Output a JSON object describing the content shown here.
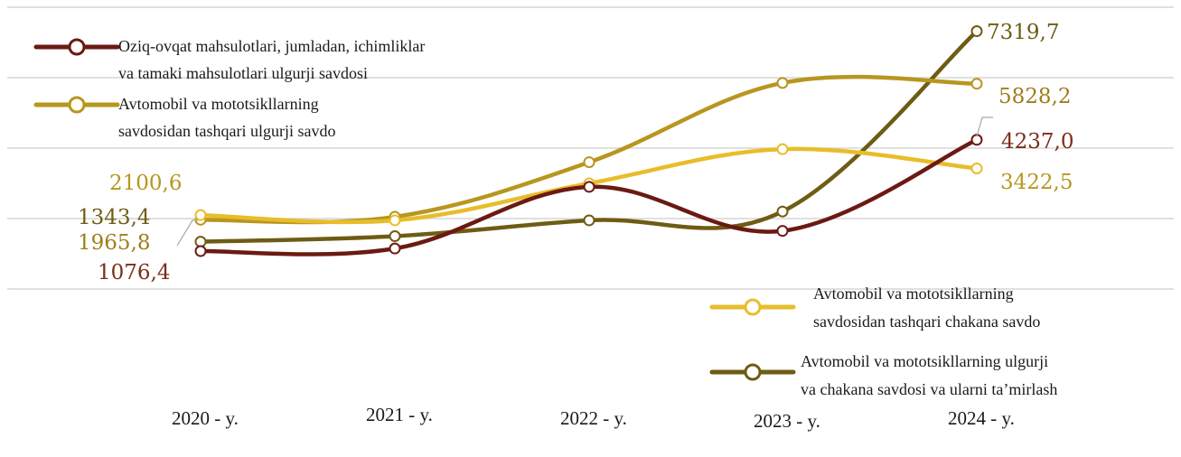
{
  "chart_data": {
    "type": "line",
    "categories": [
      "2020 - y.",
      "2021 - y.",
      "2022 - y.",
      "2023 - y.",
      "2024 - y."
    ],
    "ylim": [
      -2000,
      8000
    ],
    "grid": true,
    "smooth": true,
    "series": [
      {
        "name": "Oziq-ovqat mahsulotlari, jumladan, ichimliklar va tamaki mahsulotlari ulgurji savdosi",
        "legend_lines": [
          "Oziq-ovqat mahsulotlari, jumladan, ichimliklar",
          "va tamaki mahsulotlari ulgurji savdosi"
        ],
        "color": "#6b1a12",
        "label_color": "#7a2e1a",
        "values": [
          1076.4,
          1150,
          2900,
          1650,
          4237.0
        ],
        "labels": [
          "1076,4",
          "",
          "",
          "",
          "4237,0"
        ]
      },
      {
        "name": "Avtomobil va mototsikllarning savdosidan tashqari ulgurji savdo",
        "legend_lines": [
          "Avtomobil va mototsikllarning",
          "savdosidan tashqari ulgurji savdo"
        ],
        "color": "#b8961f",
        "label_color": "#9e7f1c",
        "values": [
          1965.8,
          2050,
          3600,
          5850,
          5828.2
        ],
        "labels": [
          "1965,8",
          "",
          "",
          "",
          "5828,2"
        ]
      },
      {
        "name": "Avtomobil va  mototsikllarning savdosidan tashqari chakana savdo",
        "legend_lines": [
          "Avtomobil va  mototsikllarning",
          "savdosidan tashqari chakana savdo"
        ],
        "color": "#e8bd2a",
        "label_color": "#b8961f",
        "values": [
          2100.6,
          1950,
          3000,
          3970,
          3422.5
        ],
        "labels": [
          "2100,6",
          "",
          "",
          "",
          "3422,5"
        ]
      },
      {
        "name": "Avtomobil va  mototsikllarning ulgurji va chakana savdosi va ularni ta’mirlash",
        "legend_lines": [
          "Avtomobil va  mototsikllarning ulgurji",
          "va chakana savdosi va ularni ta’mirlash"
        ],
        "color": "#6e5c14",
        "label_color": "#6e5c14",
        "values": [
          1343.4,
          1500,
          1950,
          2200,
          7319.7
        ],
        "labels": [
          "1343,4",
          "",
          "",
          "",
          "7319,7"
        ]
      }
    ]
  }
}
